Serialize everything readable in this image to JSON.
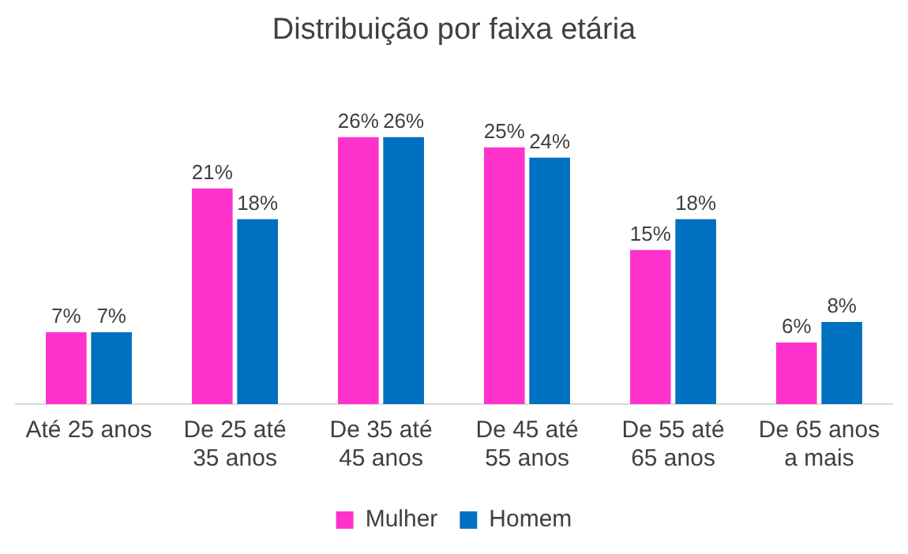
{
  "chart_data": {
    "type": "bar",
    "title": "Distribuição por faixa etária",
    "categories": [
      "Até 25 anos",
      "De 25 até 35 anos",
      "De 35 até 45 anos",
      "De 45 até 55 anos",
      "De 55 até 65 anos",
      "De 65 anos a mais"
    ],
    "series": [
      {
        "name": "Mulher",
        "color": "#ff33cc",
        "values": [
          7,
          21,
          26,
          25,
          15,
          6
        ],
        "value_labels": [
          "7%",
          "21%",
          "26%",
          "25%",
          "15%",
          "6%"
        ]
      },
      {
        "name": "Homem",
        "color": "#0070c0",
        "values": [
          7,
          18,
          26,
          24,
          18,
          8
        ],
        "value_labels": [
          "7%",
          "18%",
          "26%",
          "24%",
          "18%",
          "8%"
        ]
      }
    ],
    "tick_labels": "x",
    "grid": false,
    "legend": "bottom"
  }
}
